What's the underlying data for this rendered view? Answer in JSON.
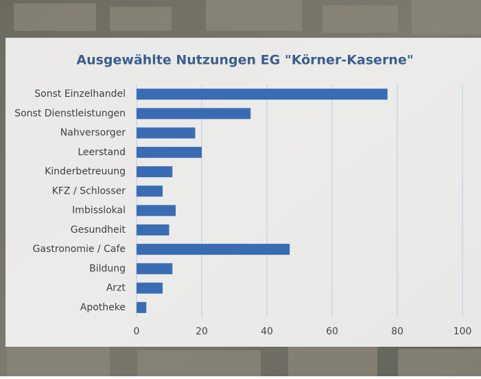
{
  "chart_data": {
    "type": "hbar",
    "title": "Ausgewählte Nutzungen EG \"Körner-Kaserne\"",
    "categories": [
      "Sonst Einzelhandel",
      "Sonst Dienstleistungen",
      "Nahversorger",
      "Leerstand",
      "Kinderbetreuung",
      "KFZ / Schlosser",
      "Imbisslokal",
      "Gesundheit",
      "Gastronomie / Cafe",
      "Bildung",
      "Arzt",
      "Apotheke"
    ],
    "values": [
      77,
      35,
      18,
      20,
      11,
      8,
      12,
      10,
      47,
      11,
      8,
      3
    ],
    "color": "#3a6cb4",
    "xlim": [
      0,
      100
    ],
    "xticks": [
      0,
      20,
      40,
      60,
      80,
      100
    ],
    "grid": true
  }
}
